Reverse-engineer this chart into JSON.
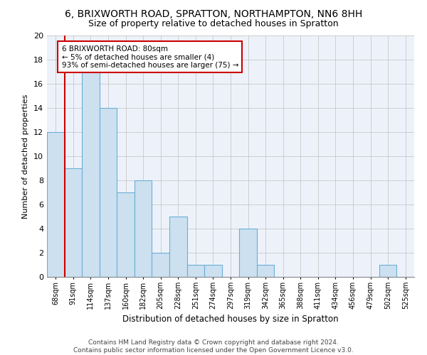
{
  "title1": "6, BRIXWORTH ROAD, SPRATTON, NORTHAMPTON, NN6 8HH",
  "title2": "Size of property relative to detached houses in Spratton",
  "xlabel": "Distribution of detached houses by size in Spratton",
  "ylabel": "Number of detached properties",
  "categories": [
    "68sqm",
    "91sqm",
    "114sqm",
    "137sqm",
    "160sqm",
    "182sqm",
    "205sqm",
    "228sqm",
    "251sqm",
    "274sqm",
    "297sqm",
    "319sqm",
    "342sqm",
    "365sqm",
    "388sqm",
    "411sqm",
    "434sqm",
    "456sqm",
    "479sqm",
    "502sqm",
    "525sqm"
  ],
  "values": [
    12,
    9,
    17,
    14,
    7,
    8,
    2,
    5,
    1,
    1,
    0,
    4,
    1,
    0,
    0,
    0,
    0,
    0,
    0,
    1,
    0
  ],
  "bar_color": "#cce0f0",
  "bar_edge_color": "#6baed6",
  "vline_color": "#cc0000",
  "annotation_text": "6 BRIXWORTH ROAD: 80sqm\n← 5% of detached houses are smaller (4)\n93% of semi-detached houses are larger (75) →",
  "annotation_box_color": "#ffffff",
  "annotation_box_edge": "#cc0000",
  "ylim": [
    0,
    20
  ],
  "yticks": [
    0,
    2,
    4,
    6,
    8,
    10,
    12,
    14,
    16,
    18,
    20
  ],
  "footer": "Contains HM Land Registry data © Crown copyright and database right 2024.\nContains public sector information licensed under the Open Government Licence v3.0.",
  "bg_color": "#edf2fa",
  "grid_color": "#c8c8c8",
  "title1_fontsize": 10,
  "title2_fontsize": 9,
  "xlabel_fontsize": 8.5,
  "ylabel_fontsize": 8,
  "footer_fontsize": 6.5
}
